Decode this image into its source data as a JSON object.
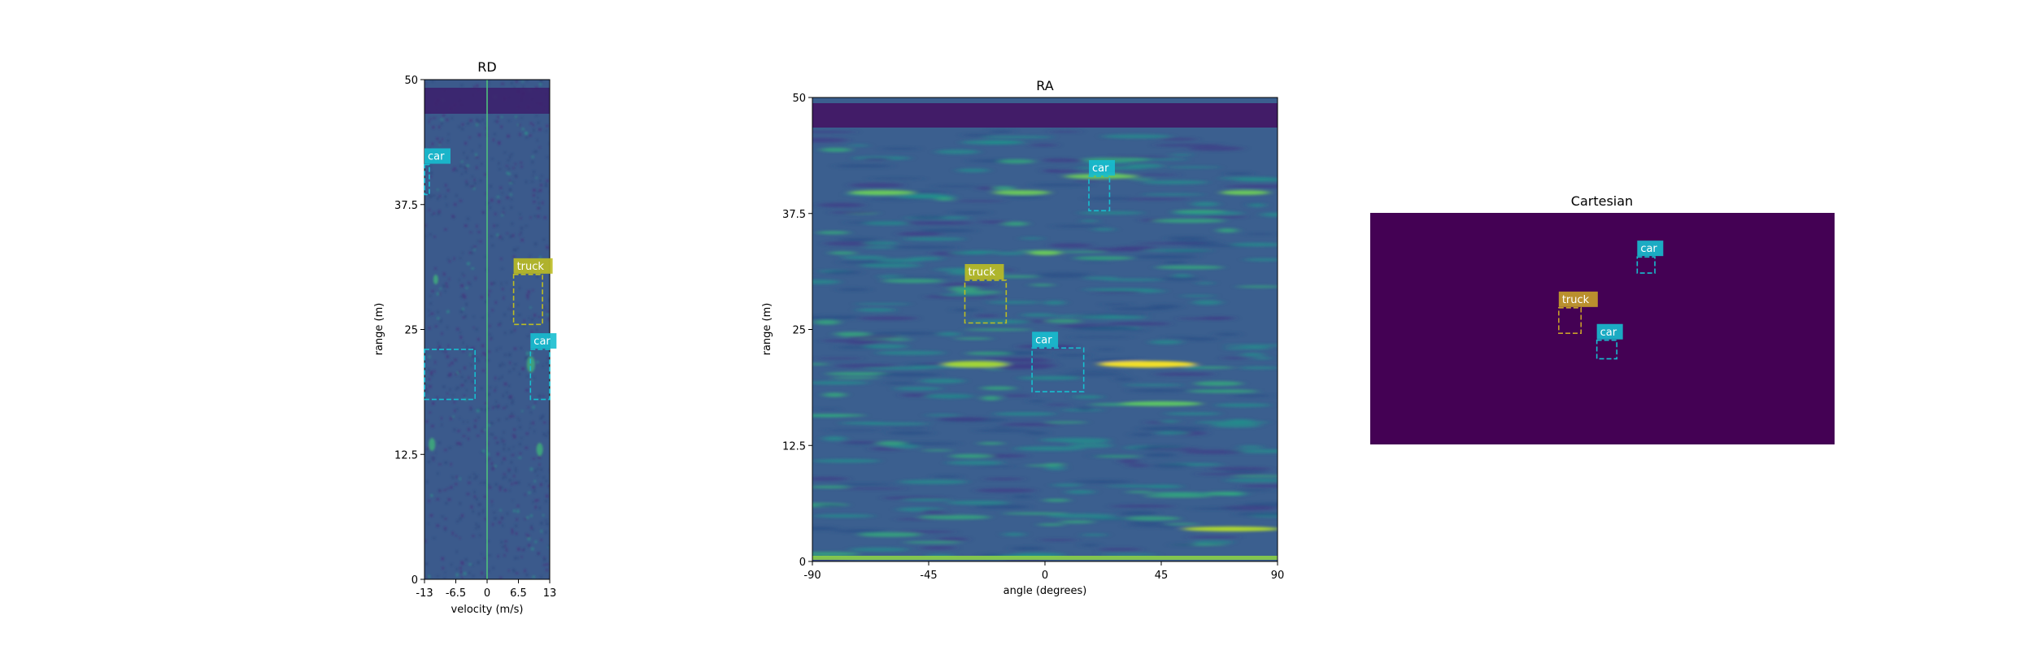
{
  "colors": {
    "background": "#ffffff",
    "heatmap_base": "#3b5a8c",
    "heatmap_dark": "#440154",
    "heatmap_bright": "#fde725",
    "heatmap_green": "#3fbf78",
    "car_color": "#17becf",
    "truck_color": "#bcbd22",
    "truck_color_cartesian": "#c8a02a"
  },
  "chart_data": [
    {
      "type": "heatmap",
      "title": "RD",
      "xlabel": "velocity (m/s)",
      "ylabel": "range (m)",
      "xlim": [
        -13,
        13
      ],
      "ylim": [
        0,
        50
      ],
      "x_ticks": [
        -13,
        -6.5,
        0,
        6.5,
        13
      ],
      "x_tick_labels": [
        "-13",
        "-6.5",
        "0",
        "6.5",
        "13"
      ],
      "y_ticks": [
        0,
        12.5,
        25,
        37.5,
        50
      ],
      "y_tick_labels": [
        "0",
        "12.5",
        "25",
        "37.5",
        "50"
      ],
      "detections": [
        {
          "label": "car",
          "x": [
            -13,
            -12
          ],
          "y": [
            38.5,
            41.5
          ]
        },
        {
          "label": "truck",
          "x": [
            5.5,
            11.5
          ],
          "y": [
            25.5,
            30.5
          ]
        },
        {
          "label": "car",
          "x": [
            9,
            13
          ],
          "y": [
            18,
            23
          ]
        },
        {
          "label": "",
          "x": [
            -13,
            -2.5
          ],
          "y": [
            18,
            23
          ]
        }
      ]
    },
    {
      "type": "heatmap",
      "title": "RA",
      "xlabel": "angle (degrees)",
      "ylabel": "range (m)",
      "xlim": [
        -90,
        90
      ],
      "ylim": [
        0,
        50
      ],
      "x_ticks": [
        -90,
        -45,
        0,
        45,
        90
      ],
      "x_tick_labels": [
        "-90",
        "-45",
        "0",
        "45",
        "90"
      ],
      "y_ticks": [
        0,
        12.5,
        25,
        37.5,
        50
      ],
      "y_tick_labels": [
        "0",
        "12.5",
        "25",
        "37.5",
        "50"
      ],
      "detections": [
        {
          "label": "car",
          "x": [
            17,
            25
          ],
          "y": [
            37.8,
            41.5
          ]
        },
        {
          "label": "truck",
          "x": [
            -31,
            -15
          ],
          "y": [
            25.7,
            30.3
          ]
        },
        {
          "label": "car",
          "x": [
            -5,
            15
          ],
          "y": [
            18.3,
            23
          ]
        }
      ]
    },
    {
      "type": "heatmap",
      "title": "Cartesian",
      "xlabel": "",
      "ylabel": "",
      "detections": [
        {
          "label": "car",
          "x": [
            0.575,
            0.613
          ],
          "y": [
            0.19,
            0.26
          ]
        },
        {
          "label": "truck",
          "x": [
            0.406,
            0.454
          ],
          "y": [
            0.41,
            0.52
          ]
        },
        {
          "label": "car",
          "x": [
            0.488,
            0.531
          ],
          "y": [
            0.55,
            0.63
          ]
        }
      ]
    }
  ]
}
